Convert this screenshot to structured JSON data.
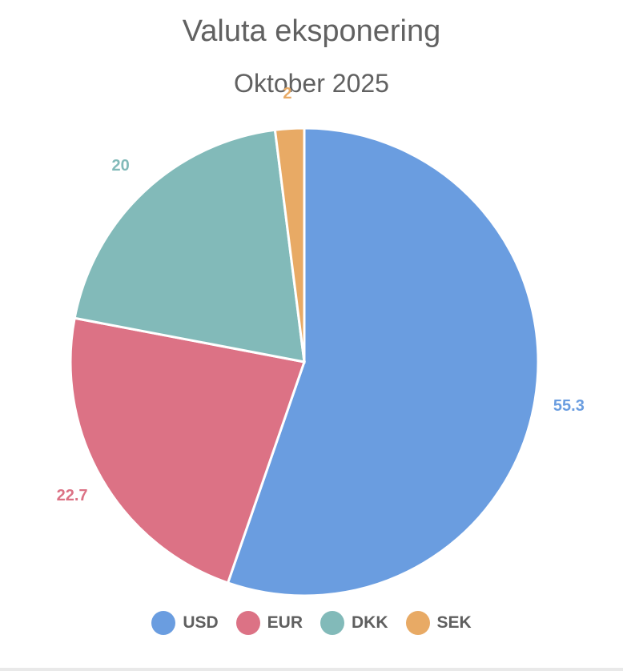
{
  "chart_data": {
    "type": "pie",
    "title": "Valuta eksponering",
    "subtitle": "Oktober 2025",
    "categories": [
      "USD",
      "EUR",
      "DKK",
      "SEK"
    ],
    "values": [
      55.3,
      22.7,
      20,
      2
    ],
    "value_labels": [
      "55.3",
      "22.7",
      "20",
      "2"
    ],
    "colors": [
      "#6a9de0",
      "#dc7285",
      "#82bab9",
      "#e8aa65"
    ],
    "legend_position": "bottom"
  }
}
